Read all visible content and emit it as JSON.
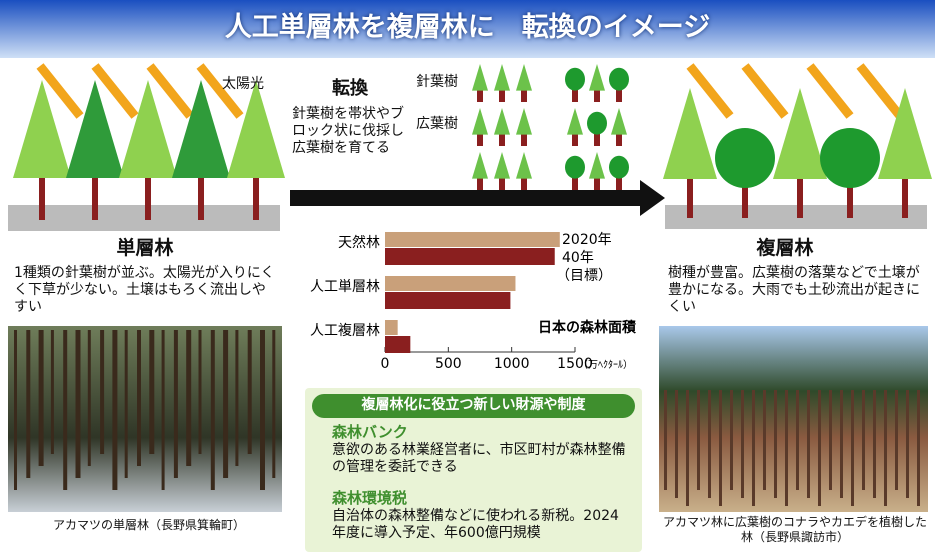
{
  "title": "人工単層林を複層林に　転換のイメージ",
  "left": {
    "sun_label": "太陽光",
    "heading": "単層林",
    "description": "1種類の針葉樹が並ぶ。太陽光が入りにくく下草が少ない。土壌はもろく流出しやすい",
    "caption": "アカマツの単層林（長野県箕輪町）"
  },
  "center": {
    "heading": "転換",
    "description": "針葉樹を帯状やブロック状に伐採し広葉樹を育てる",
    "conifer_label": "針葉樹",
    "broadleaf_label": "広葉樹"
  },
  "right": {
    "heading": "複層林",
    "description": "樹種が豊富。広葉樹の落葉などで土壌が豊かになる。大雨でも土砂流出が起きにくい",
    "caption": "アカマツ林に広葉樹のコナラやカエデを植樹した林（長野県諏訪市）"
  },
  "chart_data": {
    "type": "bar",
    "orientation": "horizontal",
    "title": "日本の森林面積",
    "categories": [
      "天然林",
      "人工単層林",
      "人工複層林"
    ],
    "series": [
      {
        "name": "2020年",
        "color": "#c9a07a",
        "values": [
          1380,
          1030,
          100
        ]
      },
      {
        "name": "40年",
        "color": "#8a1f1f",
        "values": [
          1340,
          990,
          200
        ]
      }
    ],
    "series_note": "（目標）",
    "xlim": [
      0,
      1500
    ],
    "xticks": [
      0,
      500,
      1000,
      1500
    ],
    "x_unit": "（万ﾍｸﾀｰﾙ）"
  },
  "policy": {
    "heading": "複層林化に役立つ新しい財源や制度",
    "items": [
      {
        "title": "森林バンク",
        "text": "意欲のある林業経営者に、市区町村が森林整備の管理を委託できる"
      },
      {
        "title": "森林環境税",
        "text": "自治体の森林整備などに使われる新税。2024年度に導入予定、年600億円規模"
      }
    ]
  }
}
